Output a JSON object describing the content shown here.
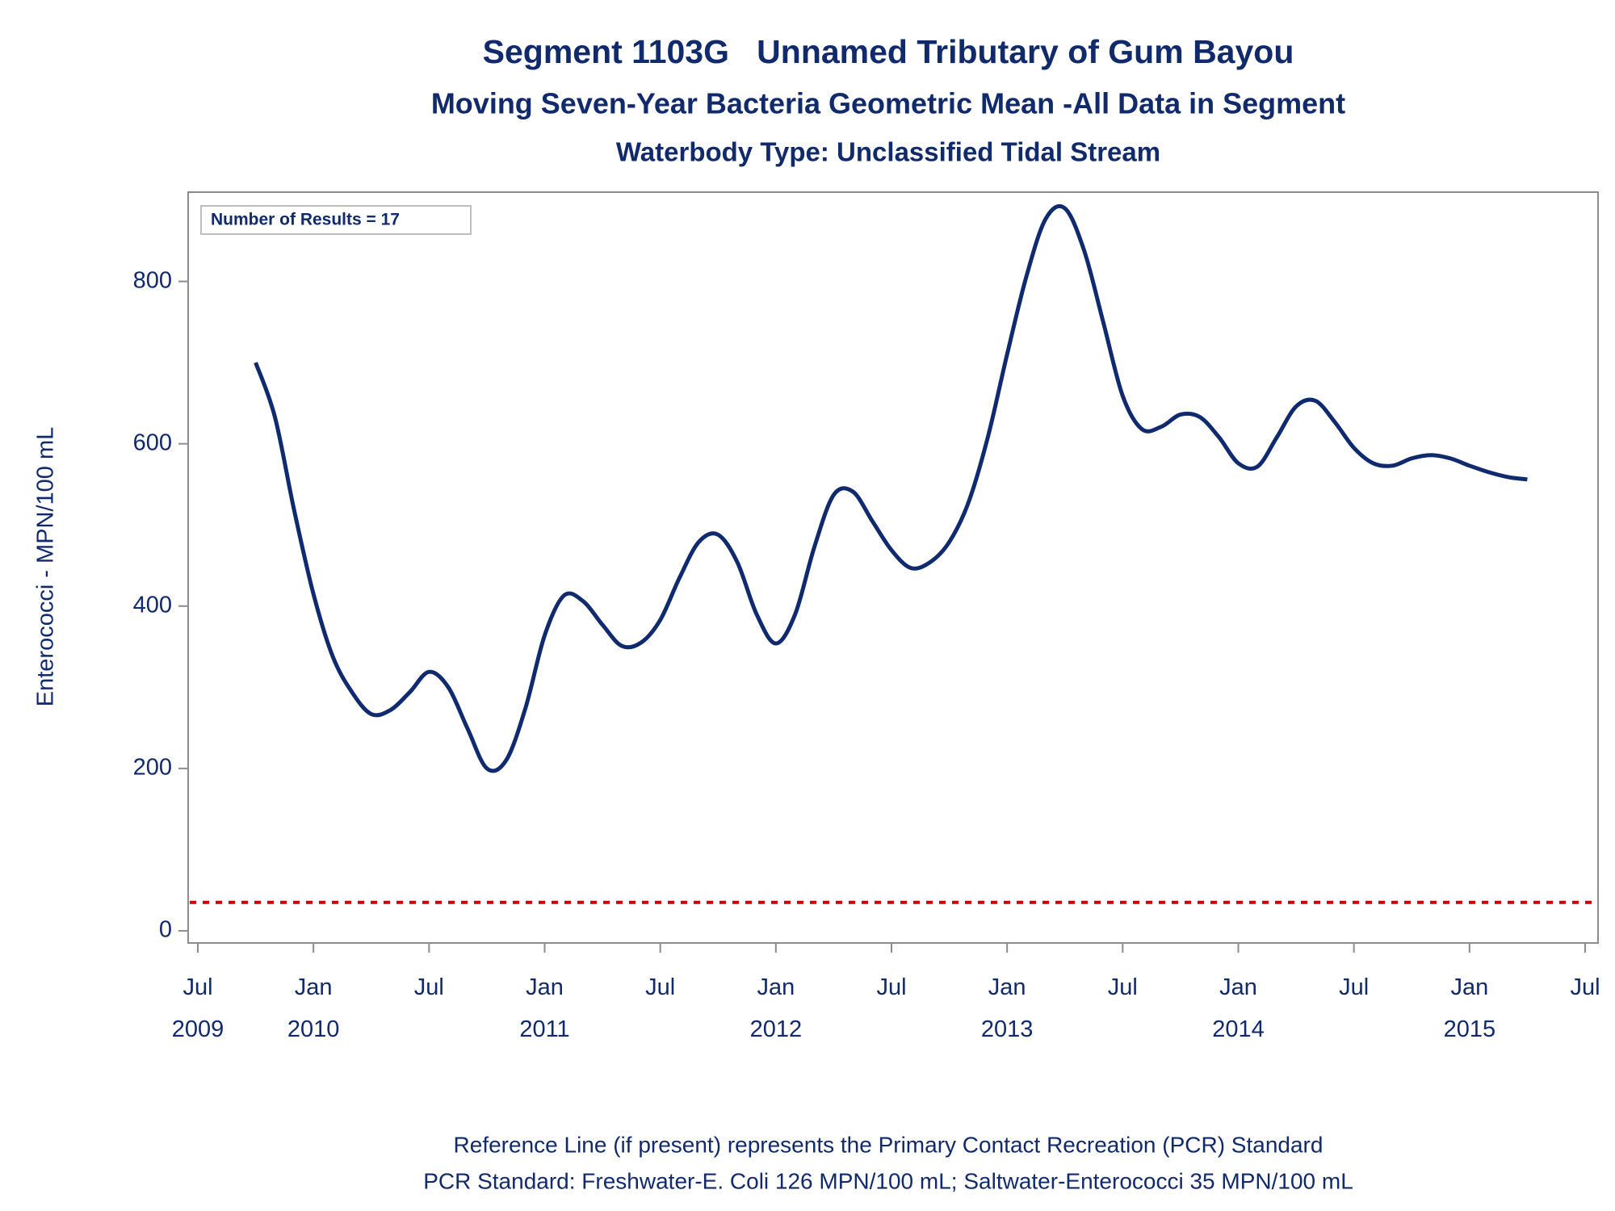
{
  "chart_data": {
    "type": "line",
    "title": "Segment 1103G   Unnamed Tributary of Gum Bayou",
    "subtitle": "Moving Seven-Year Bacteria Geometric Mean -All Data in Segment",
    "subtitle2": "Waterbody Type: Unclassified Tidal Stream",
    "y_label": "Enterococci - MPN/100 mL",
    "annotation": "Number of Results = 17",
    "footnotes": [
      "Reference Line (if present) represents the Primary Contact Recreation (PCR) Standard",
      "PCR Standard: Freshwater-E. Coli 126 MPN/100 mL; Saltwater-Enterococci 35 MPN/100 mL"
    ],
    "x": [
      "2009-10",
      "2009-11",
      "2009-12",
      "2010-01",
      "2010-02",
      "2010-03",
      "2010-04",
      "2010-05",
      "2010-06",
      "2010-07",
      "2010-08",
      "2010-09",
      "2010-10",
      "2010-11",
      "2010-12",
      "2011-01",
      "2011-02",
      "2011-03",
      "2011-04",
      "2011-05",
      "2011-06",
      "2011-07",
      "2011-08",
      "2011-09",
      "2011-10",
      "2011-11",
      "2011-12",
      "2012-01",
      "2012-02",
      "2012-03",
      "2012-04",
      "2012-05",
      "2012-06",
      "2012-07",
      "2012-08",
      "2012-09",
      "2012-10",
      "2012-11",
      "2012-12",
      "2013-01",
      "2013-02",
      "2013-03",
      "2013-04",
      "2013-05",
      "2013-06",
      "2013-07",
      "2013-08",
      "2013-09",
      "2013-10",
      "2013-11",
      "2013-12",
      "2014-01",
      "2014-02",
      "2014-03",
      "2014-04",
      "2014-05",
      "2014-06",
      "2014-07",
      "2014-08",
      "2014-09",
      "2014-10",
      "2014-11",
      "2014-12",
      "2015-01",
      "2015-02",
      "2015-03",
      "2015-04"
    ],
    "series": [
      {
        "name": "Geometric Mean",
        "color": "#0f2a6e",
        "values": [
          700,
          633,
          518,
          415,
          338,
          294,
          267,
          272,
          294,
          319,
          300,
          249,
          200,
          210,
          274,
          364,
          413,
          406,
          377,
          351,
          355,
          383,
          435,
          479,
          488,
          454,
          390,
          354,
          390,
          473,
          537,
          541,
          505,
          469,
          447,
          454,
          479,
          528,
          608,
          710,
          806,
          877,
          890,
          838,
          749,
          659,
          618,
          621,
          636,
          633,
          608,
          576,
          572,
          608,
          646,
          653,
          627,
          595,
          576,
          573,
          582,
          586,
          582,
          573,
          565,
          559,
          556
        ]
      }
    ],
    "reference_line": {
      "value": 35,
      "color": "#cc0000"
    },
    "xlim": [
      "2009-07",
      "2015-07"
    ],
    "xticks": [
      {
        "value": "2009-07",
        "label": "Jul 2009"
      },
      {
        "value": "2010-01",
        "label": "Jan 2010"
      },
      {
        "value": "2010-07",
        "label": "Jul"
      },
      {
        "value": "2011-01",
        "label": "Jan 2011"
      },
      {
        "value": "2011-07",
        "label": "Jul"
      },
      {
        "value": "2012-01",
        "label": "Jan 2012"
      },
      {
        "value": "2012-07",
        "label": "Jul"
      },
      {
        "value": "2013-01",
        "label": "Jan 2013"
      },
      {
        "value": "2013-07",
        "label": "Jul"
      },
      {
        "value": "2014-01",
        "label": "Jan 2014"
      },
      {
        "value": "2014-07",
        "label": "Jul"
      },
      {
        "value": "2015-01",
        "label": "Jan 2015"
      },
      {
        "value": "2015-07",
        "label": "Jul"
      }
    ],
    "ylim": [
      -15,
      910
    ],
    "yticks": [
      0,
      200,
      400,
      600,
      800
    ]
  }
}
